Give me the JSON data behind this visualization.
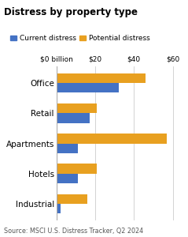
{
  "title": "Distress by property type",
  "categories": [
    "Office",
    "Retail",
    "Apartments",
    "Hotels",
    "Industrial"
  ],
  "current_distress": [
    32,
    17,
    11,
    11,
    2
  ],
  "potential_distress": [
    46,
    21,
    57,
    21,
    16
  ],
  "current_color": "#4472C4",
  "potential_color": "#E8A020",
  "xticks": [
    0,
    20,
    40,
    60
  ],
  "xticklabels": [
    "$0 billion",
    "$20",
    "$40",
    "$60"
  ],
  "xlim": [
    0,
    65
  ],
  "source": "Source: MSCI U.S. Distress Tracker, Q2 2024",
  "legend_current": "Current distress",
  "legend_potential": "Potential distress",
  "background_color": "#ffffff",
  "title_fontsize": 8.5,
  "label_fontsize": 7.5,
  "tick_fontsize": 6.5,
  "source_fontsize": 5.8,
  "bar_height": 0.32
}
